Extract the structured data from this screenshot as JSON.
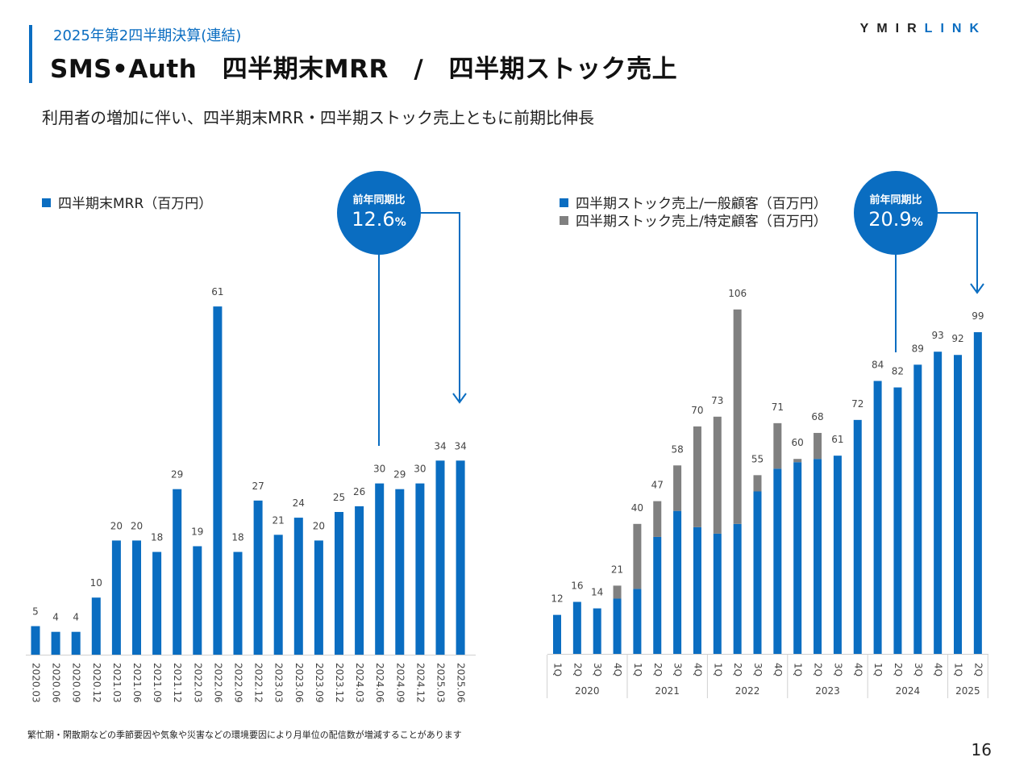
{
  "header": {
    "subtitle": "2025年第2四半期決算(連結)",
    "title": "SMS•Auth　四半期末MRR　/　四半期ストック売上",
    "logo_part1": "YMIR",
    "logo_part2": "LINK"
  },
  "lead": "利用者の増加に伴い、四半期末MRR・四半期ストック売上ともに前期比伸長",
  "footnote": "繁忙期・閑散期などの季節要因や気象や災害などの環境要因により月単位の配信数が増減することがあります",
  "page_number": "16",
  "colors": {
    "primary": "#0a6dc1",
    "secondary": "#808080",
    "text": "#222222"
  },
  "left_callout": {
    "label": "前年同期比",
    "value": "12.6",
    "unit": "%"
  },
  "right_callout": {
    "label": "前年同期比",
    "value": "20.9",
    "unit": "%"
  },
  "chart_data": [
    {
      "type": "bar",
      "legend": [
        "四半期末MRR（百万円）"
      ],
      "categories": [
        "2020.03",
        "2020.06",
        "2020.09",
        "2020.12",
        "2021.03",
        "2021.06",
        "2021.09",
        "2021.12",
        "2022.03",
        "2022.06",
        "2022.09",
        "2022.12",
        "2023.03",
        "2023.06",
        "2023.09",
        "2023.12",
        "2024.03",
        "2024.06",
        "2024.09",
        "2024.12",
        "2025.03",
        "2025.06"
      ],
      "series": [
        {
          "name": "四半期末MRR（百万円）",
          "color": "#0a6dc1",
          "values": [
            5,
            4,
            4,
            10,
            20,
            20,
            18,
            29,
            19,
            61,
            18,
            27,
            21,
            24,
            20,
            25,
            26,
            30,
            29,
            30,
            34,
            34
          ]
        }
      ],
      "labels": [
        "5",
        "4",
        "4",
        "10",
        "20",
        "20",
        "18",
        "29",
        "19",
        "61",
        "18",
        "27",
        "21",
        "24",
        "20",
        "25",
        "26",
        "30",
        "29",
        "30",
        "34",
        "34"
      ],
      "ylim": [
        0,
        62
      ]
    },
    {
      "type": "bar",
      "stacked": true,
      "legend": [
        "四半期ストック売上/一般顧客（百万円）",
        "四半期ストック売上/特定顧客（百万円）"
      ],
      "categories": [
        "1Q",
        "2Q",
        "3Q",
        "4Q",
        "1Q",
        "2Q",
        "3Q",
        "4Q",
        "1Q",
        "2Q",
        "3Q",
        "4Q",
        "1Q",
        "2Q",
        "3Q",
        "4Q",
        "1Q",
        "2Q",
        "3Q",
        "4Q",
        "1Q",
        "2Q"
      ],
      "year_groups": [
        {
          "year": "2020",
          "count": 4
        },
        {
          "year": "2021",
          "count": 4
        },
        {
          "year": "2022",
          "count": 4
        },
        {
          "year": "2023",
          "count": 4
        },
        {
          "year": "2024",
          "count": 4
        },
        {
          "year": "2025",
          "count": 2
        }
      ],
      "series": [
        {
          "name": "四半期ストック売上/一般顧客（百万円）",
          "color": "#0a6dc1",
          "values": [
            12,
            16,
            14,
            17,
            20,
            36,
            44,
            39,
            37,
            40,
            50,
            57,
            59,
            60,
            61,
            72,
            84,
            82,
            89,
            93,
            92,
            99
          ]
        },
        {
          "name": "四半期ストック売上/特定顧客（百万円）",
          "color": "#808080",
          "values": [
            0,
            0,
            0,
            4,
            20,
            11,
            14,
            31,
            36,
            66,
            5,
            14,
            1,
            8,
            0,
            0,
            0,
            0,
            0,
            0,
            0,
            0
          ]
        }
      ],
      "totals": [
        "12",
        "16",
        "14",
        "21",
        "40",
        "47",
        "58",
        "70",
        "73",
        "106",
        "55",
        "71",
        "60",
        "68",
        "61",
        "72",
        "84",
        "82",
        "89",
        "93",
        "92",
        "99"
      ],
      "ylim": [
        0,
        108
      ]
    }
  ]
}
